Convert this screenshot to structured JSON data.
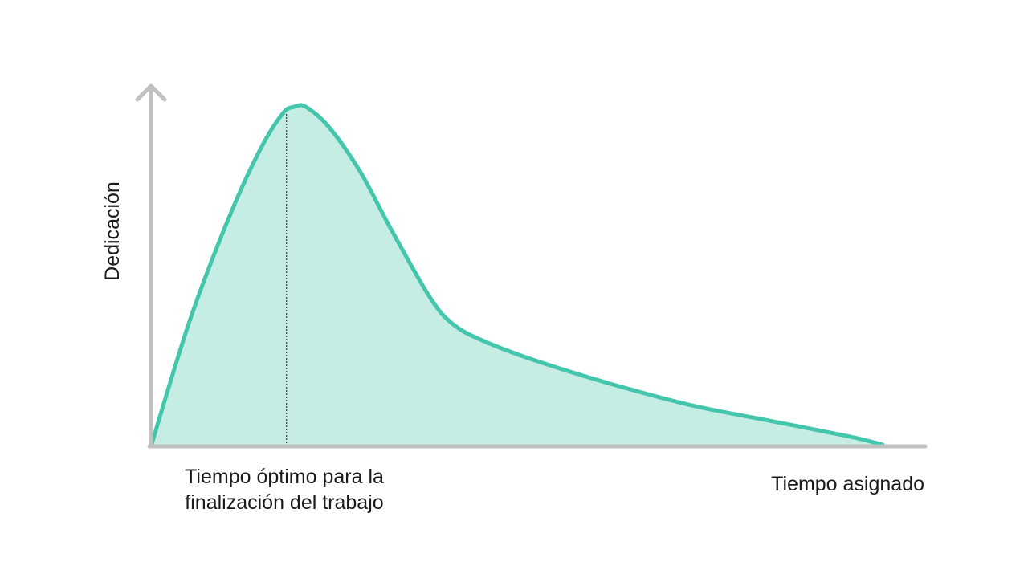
{
  "chart_data": {
    "type": "area",
    "title": "",
    "xlabel": "Tiempo asignado",
    "ylabel": "Dedicación",
    "x_tick_labels": [],
    "y_tick_labels": [],
    "grid": false,
    "legend": "none",
    "xlim": [
      0,
      1
    ],
    "ylim": [
      0,
      1.05
    ],
    "series": [
      {
        "x": [
          0,
          0.05,
          0.1,
          0.14,
          0.17,
          0.185,
          0.2,
          0.23,
          0.27,
          0.31,
          0.36,
          0.39,
          0.43,
          0.5,
          0.6,
          0.7,
          0.8,
          0.9,
          0.945
        ],
        "y": [
          0,
          0.37,
          0.67,
          0.87,
          0.98,
          1.0,
          1.0,
          0.94,
          0.81,
          0.64,
          0.44,
          0.36,
          0.31,
          0.25,
          0.18,
          0.12,
          0.075,
          0.03,
          0.005
        ]
      }
    ],
    "annotations": [
      {
        "type": "vline",
        "x": 0.175,
        "text": [
          "Tiempo óptimo para la",
          "finalización del trabajo"
        ]
      }
    ],
    "colors": {
      "line": "#44c6ac",
      "fill": "#c6ede3",
      "axis": "#c0c0c0",
      "marker": "#1a1a1a"
    }
  }
}
